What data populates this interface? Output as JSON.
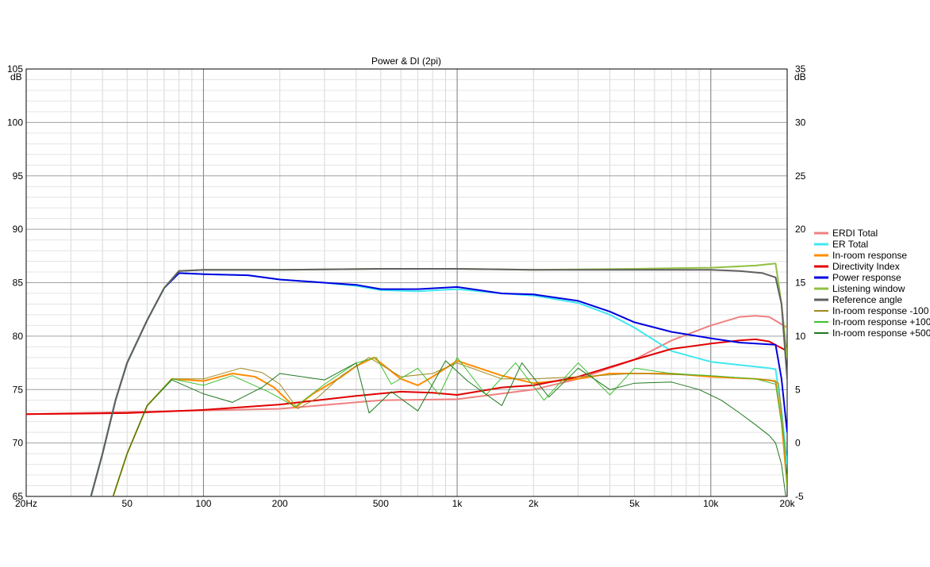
{
  "chart_data": {
    "type": "line",
    "title": "Power & DI (2pi)",
    "x_scale": "log",
    "xlim": [
      20,
      20000
    ],
    "ylim_left": [
      65,
      105
    ],
    "ylim_right": [
      -5,
      35
    ],
    "y_unit_left": "dB",
    "y_unit_right": "dB",
    "x_ticks": [
      {
        "v": 20,
        "label": "20Hz"
      },
      {
        "v": 50,
        "label": "50"
      },
      {
        "v": 100,
        "label": "100"
      },
      {
        "v": 200,
        "label": "200"
      },
      {
        "v": 500,
        "label": "500"
      },
      {
        "v": 1000,
        "label": "1k"
      },
      {
        "v": 2000,
        "label": "2k"
      },
      {
        "v": 5000,
        "label": "5k"
      },
      {
        "v": 10000,
        "label": "10k"
      },
      {
        "v": 20000,
        "label": "20k"
      }
    ],
    "y_ticks_left": [
      "65",
      "70",
      "75",
      "80",
      "85",
      "90",
      "95",
      "100",
      "105"
    ],
    "y_ticks_right": [
      "-5",
      "0",
      "5",
      "10",
      "15",
      "20",
      "25",
      "30",
      "35"
    ],
    "grid": true,
    "legend_position": "right",
    "series": [
      {
        "name": "ERDI Total",
        "color": "#f08080",
        "axis": "right",
        "points": [
          [
            20,
            2.7
          ],
          [
            200,
            3.2
          ],
          [
            500,
            4.0
          ],
          [
            1000,
            4.1
          ],
          [
            2000,
            5.0
          ],
          [
            3000,
            6.0
          ],
          [
            5000,
            7.8
          ],
          [
            7000,
            9.6
          ],
          [
            10000,
            11.0
          ],
          [
            13000,
            11.8
          ],
          [
            15000,
            11.9
          ],
          [
            17000,
            11.8
          ],
          [
            20000,
            10.8
          ]
        ]
      },
      {
        "name": "ER Total",
        "color": "#40e8f0",
        "axis": "left",
        "points": [
          [
            36,
            65
          ],
          [
            40,
            69
          ],
          [
            45,
            74
          ],
          [
            50,
            77.5
          ],
          [
            60,
            81.5
          ],
          [
            70,
            84.5
          ],
          [
            80,
            85.9
          ],
          [
            100,
            85.8
          ],
          [
            150,
            85.7
          ],
          [
            200,
            85.3
          ],
          [
            300,
            85.0
          ],
          [
            400,
            84.7
          ],
          [
            500,
            84.3
          ],
          [
            700,
            84.2
          ],
          [
            1000,
            84.4
          ],
          [
            1500,
            84.0
          ],
          [
            2000,
            83.8
          ],
          [
            3000,
            83.1
          ],
          [
            4000,
            82.0
          ],
          [
            5000,
            80.8
          ],
          [
            7000,
            78.6
          ],
          [
            10000,
            77.6
          ],
          [
            13000,
            77.3
          ],
          [
            17000,
            77.0
          ],
          [
            18000,
            76.9
          ],
          [
            19000,
            73
          ],
          [
            20000,
            68
          ]
        ]
      },
      {
        "name": "In-room response",
        "color": "#ff8c00",
        "axis": "left",
        "points": [
          [
            44,
            65
          ],
          [
            50,
            69
          ],
          [
            60,
            73.5
          ],
          [
            75,
            76.0
          ],
          [
            100,
            75.8
          ],
          [
            130,
            76.5
          ],
          [
            160,
            76.2
          ],
          [
            190,
            75.2
          ],
          [
            230,
            73.3
          ],
          [
            270,
            74.6
          ],
          [
            350,
            76.2
          ],
          [
            400,
            77.2
          ],
          [
            470,
            78.0
          ],
          [
            600,
            76.0
          ],
          [
            700,
            75.4
          ],
          [
            800,
            76.2
          ],
          [
            1000,
            77.7
          ],
          [
            1500,
            76.3
          ],
          [
            2000,
            75.6
          ],
          [
            3000,
            76.0
          ],
          [
            4000,
            76.5
          ],
          [
            5000,
            76.5
          ],
          [
            7000,
            76.5
          ],
          [
            10000,
            76.2
          ],
          [
            15000,
            76.0
          ],
          [
            18000,
            75.8
          ],
          [
            19000,
            72
          ],
          [
            20000,
            66
          ]
        ]
      },
      {
        "name": "Directivity Index",
        "color": "#e00000",
        "axis": "right",
        "points": [
          [
            20,
            2.7
          ],
          [
            50,
            2.8
          ],
          [
            100,
            3.1
          ],
          [
            200,
            3.6
          ],
          [
            400,
            4.4
          ],
          [
            600,
            4.8
          ],
          [
            800,
            4.7
          ],
          [
            1000,
            4.5
          ],
          [
            1500,
            5.2
          ],
          [
            2000,
            5.4
          ],
          [
            3000,
            6.2
          ],
          [
            5000,
            7.8
          ],
          [
            7000,
            8.8
          ],
          [
            10000,
            9.3
          ],
          [
            13000,
            9.6
          ],
          [
            15000,
            9.7
          ],
          [
            17000,
            9.5
          ],
          [
            20000,
            8.6
          ]
        ]
      },
      {
        "name": "Power response",
        "color": "#0000e0",
        "axis": "left",
        "points": [
          [
            36,
            65
          ],
          [
            40,
            69
          ],
          [
            45,
            74
          ],
          [
            50,
            77.5
          ],
          [
            60,
            81.5
          ],
          [
            70,
            84.5
          ],
          [
            80,
            85.9
          ],
          [
            100,
            85.8
          ],
          [
            150,
            85.7
          ],
          [
            200,
            85.3
          ],
          [
            300,
            85.0
          ],
          [
            400,
            84.8
          ],
          [
            500,
            84.4
          ],
          [
            700,
            84.4
          ],
          [
            1000,
            84.6
          ],
          [
            1500,
            84.0
          ],
          [
            2000,
            83.9
          ],
          [
            3000,
            83.3
          ],
          [
            4000,
            82.3
          ],
          [
            5000,
            81.3
          ],
          [
            7000,
            80.4
          ],
          [
            10000,
            79.8
          ],
          [
            13000,
            79.4
          ],
          [
            18000,
            79.2
          ],
          [
            19000,
            76
          ],
          [
            20000,
            71
          ]
        ]
      },
      {
        "name": "Listening window",
        "color": "#90c040",
        "axis": "left",
        "points": [
          [
            36,
            65
          ],
          [
            40,
            69
          ],
          [
            45,
            74
          ],
          [
            50,
            77.5
          ],
          [
            60,
            81.5
          ],
          [
            70,
            84.5
          ],
          [
            80,
            86.1
          ],
          [
            100,
            86.2
          ],
          [
            200,
            86.2
          ],
          [
            500,
            86.3
          ],
          [
            1000,
            86.3
          ],
          [
            2000,
            86.2
          ],
          [
            5000,
            86.3
          ],
          [
            10000,
            86.4
          ],
          [
            15000,
            86.6
          ],
          [
            18000,
            86.8
          ],
          [
            19000,
            83
          ],
          [
            20000,
            78
          ]
        ]
      },
      {
        "name": "Reference angle",
        "color": "#606060",
        "axis": "left",
        "points": [
          [
            36,
            65
          ],
          [
            40,
            69
          ],
          [
            45,
            74
          ],
          [
            50,
            77.5
          ],
          [
            60,
            81.5
          ],
          [
            70,
            84.5
          ],
          [
            80,
            86.1
          ],
          [
            100,
            86.2
          ],
          [
            200,
            86.2
          ],
          [
            500,
            86.3
          ],
          [
            1000,
            86.3
          ],
          [
            2000,
            86.2
          ],
          [
            5000,
            86.2
          ],
          [
            10000,
            86.2
          ],
          [
            13000,
            86.1
          ],
          [
            16000,
            85.9
          ],
          [
            18000,
            85.5
          ],
          [
            19000,
            83
          ],
          [
            20000,
            76
          ]
        ]
      },
      {
        "name": "In-room response -100",
        "color": "#a08a20",
        "axis": "left",
        "points": [
          [
            44,
            65
          ],
          [
            50,
            69
          ],
          [
            60,
            73.5
          ],
          [
            75,
            76.0
          ],
          [
            100,
            76.0
          ],
          [
            140,
            77.0
          ],
          [
            170,
            76.6
          ],
          [
            200,
            75.5
          ],
          [
            235,
            73.2
          ],
          [
            280,
            74.2
          ],
          [
            350,
            76.3
          ],
          [
            450,
            78.0
          ],
          [
            600,
            76.2
          ],
          [
            800,
            76.5
          ],
          [
            1000,
            77.5
          ],
          [
            1500,
            76.0
          ],
          [
            2000,
            76.0
          ],
          [
            3000,
            76.2
          ],
          [
            5000,
            76.5
          ],
          [
            10000,
            76.3
          ],
          [
            17000,
            75.9
          ],
          [
            18500,
            75.6
          ],
          [
            19500,
            70
          ],
          [
            20000,
            66
          ]
        ]
      },
      {
        "name": "In-room response +100",
        "color": "#40c030",
        "axis": "left",
        "points": [
          [
            44,
            65
          ],
          [
            50,
            69
          ],
          [
            60,
            73.5
          ],
          [
            75,
            76.0
          ],
          [
            100,
            75.4
          ],
          [
            130,
            76.3
          ],
          [
            180,
            74.8
          ],
          [
            230,
            73.4
          ],
          [
            300,
            75.5
          ],
          [
            400,
            77.5
          ],
          [
            480,
            78.0
          ],
          [
            550,
            75.5
          ],
          [
            700,
            77.0
          ],
          [
            850,
            74.5
          ],
          [
            1000,
            78.0
          ],
          [
            1300,
            74.5
          ],
          [
            1700,
            77.5
          ],
          [
            2200,
            74.0
          ],
          [
            3000,
            77.5
          ],
          [
            4000,
            74.5
          ],
          [
            5000,
            77.0
          ],
          [
            7000,
            76.5
          ],
          [
            10000,
            76.3
          ],
          [
            15000,
            76.0
          ],
          [
            18000,
            75.5
          ],
          [
            19500,
            70
          ],
          [
            20000,
            66
          ]
        ]
      },
      {
        "name": "In-room response +500",
        "color": "#207820",
        "axis": "left",
        "points": [
          [
            44,
            65
          ],
          [
            50,
            69
          ],
          [
            60,
            73.5
          ],
          [
            75,
            75.9
          ],
          [
            100,
            74.6
          ],
          [
            130,
            73.8
          ],
          [
            170,
            75.2
          ],
          [
            200,
            76.5
          ],
          [
            300,
            75.9
          ],
          [
            400,
            77.5
          ],
          [
            450,
            72.8
          ],
          [
            550,
            74.8
          ],
          [
            700,
            73.0
          ],
          [
            900,
            77.7
          ],
          [
            1100,
            75.8
          ],
          [
            1500,
            73.5
          ],
          [
            1800,
            77.5
          ],
          [
            2300,
            74.3
          ],
          [
            3000,
            77.0
          ],
          [
            4000,
            75.0
          ],
          [
            5000,
            75.6
          ],
          [
            7000,
            75.7
          ],
          [
            9000,
            75.0
          ],
          [
            11000,
            74.0
          ],
          [
            13000,
            72.8
          ],
          [
            15000,
            71.7
          ],
          [
            17000,
            70.7
          ],
          [
            18000,
            70.0
          ],
          [
            19000,
            68
          ],
          [
            20000,
            64
          ]
        ]
      }
    ]
  }
}
